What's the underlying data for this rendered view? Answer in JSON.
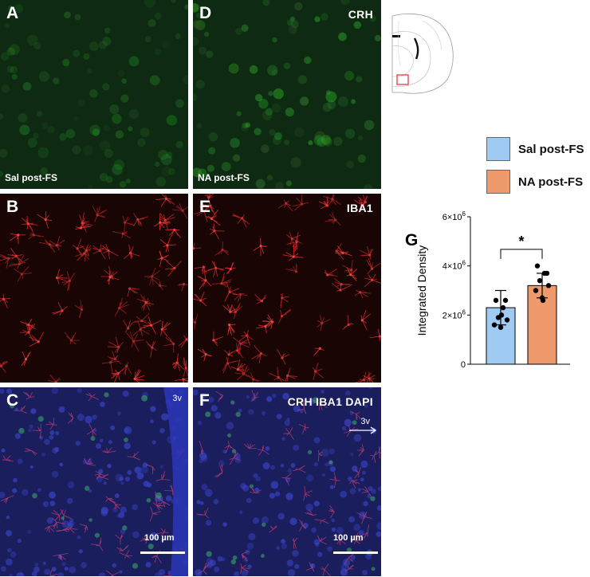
{
  "panels": [
    {
      "letter": "A",
      "condition": "Sal post-FS",
      "channel": "",
      "stain": "crh"
    },
    {
      "letter": "D",
      "condition": "NA post-FS",
      "channel": "CRH",
      "stain": "crh"
    },
    {
      "letter": "B",
      "condition": "",
      "channel": "",
      "stain": "iba1"
    },
    {
      "letter": "E",
      "condition": "",
      "channel": "IBA1",
      "stain": "iba1"
    },
    {
      "letter": "C",
      "condition": "",
      "channel": "",
      "stain": "merge",
      "ventricle": "3v",
      "scalebar": "100 µm"
    },
    {
      "letter": "F",
      "condition": "",
      "channel": "CRH IBA1 DAPI",
      "stain": "merge",
      "ventricle": "3v",
      "scalebar": "100 µm"
    }
  ],
  "colors": {
    "sal": "#9fcbf3",
    "na": "#ef9a6c",
    "crh_background": "#0f2a12",
    "iba1_background": "#1a0505",
    "merge_background": "#1a1e5c",
    "atlas_box": "#e03030"
  },
  "legend": [
    {
      "label": "Sal post-FS",
      "color": "#9fcbf3"
    },
    {
      "label": "NA post-FS",
      "color": "#ef9a6c"
    }
  ],
  "chart_panel_letter": "G",
  "chart_data": {
    "type": "bar",
    "categories": [
      "Sal post-FS",
      "NA post-FS"
    ],
    "values": [
      2300000,
      3200000
    ],
    "errors": [
      700000,
      500000
    ],
    "points": [
      [
        2600000,
        2600000,
        2300000,
        1900000,
        1800000,
        1600000,
        1500000,
        2000000
      ],
      [
        4000000,
        3700000,
        3700000,
        3400000,
        3200000,
        3000000,
        2700000,
        2600000
      ]
    ],
    "ylabel": "Integrated Density",
    "ylim": [
      0,
      6000000
    ],
    "yticks": [
      0,
      2000000,
      4000000,
      6000000
    ],
    "ytick_labels": [
      {
        "base": "0",
        "exp": ""
      },
      {
        "base": "2×10",
        "exp": "6"
      },
      {
        "base": "4×10",
        "exp": "6"
      },
      {
        "base": "6×10",
        "exp": "6"
      }
    ],
    "significance": "*",
    "grid": false
  }
}
